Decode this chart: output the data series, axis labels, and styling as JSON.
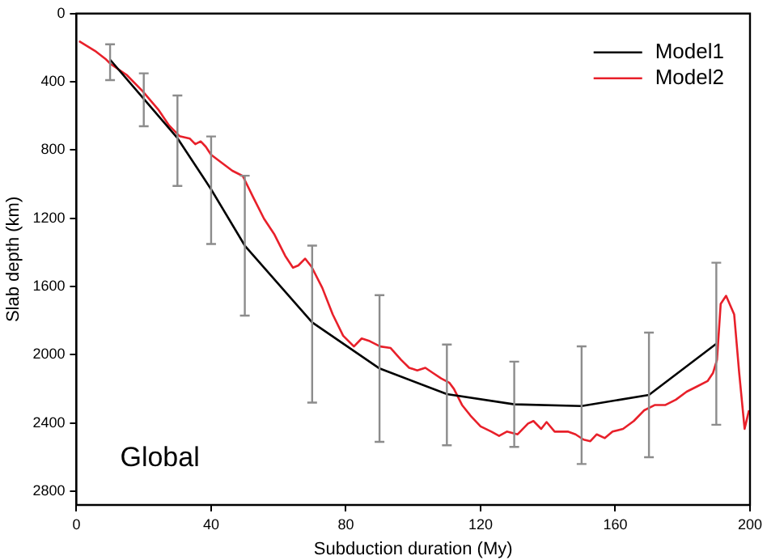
{
  "chart_data": {
    "type": "line",
    "xlabel": "Subduction duration (My)",
    "ylabel": "Slab depth (km)",
    "annotations": [
      "Global"
    ],
    "xlim": [
      0,
      200
    ],
    "xticks": [
      0,
      40,
      80,
      120,
      160,
      200
    ],
    "ylim": [
      2880,
      0
    ],
    "yticks": [
      0,
      400,
      800,
      1200,
      1600,
      2000,
      2400,
      2800
    ],
    "grid": false,
    "legend": "top right",
    "marker": "none",
    "line_style": "solid",
    "series": [
      {
        "name": "Model1",
        "color": "#000000",
        "x": [
          10,
          20,
          30,
          40,
          50,
          70,
          90,
          110,
          130,
          150,
          170,
          190
        ],
        "values": [
          270,
          500,
          730,
          1030,
          1360,
          1810,
          2080,
          2230,
          2290,
          2300,
          2235,
          1935
        ],
        "errors": [
          [
            180,
            390
          ],
          [
            350,
            660
          ],
          [
            480,
            1010
          ],
          [
            720,
            1350
          ],
          [
            950,
            1770
          ],
          [
            1360,
            2280
          ],
          [
            1650,
            2510
          ],
          [
            1940,
            2530
          ],
          [
            2040,
            2540
          ],
          [
            1950,
            2640
          ],
          [
            1870,
            2600
          ],
          [
            1460,
            2410
          ]
        ]
      },
      {
        "name": "Model2",
        "color": "#e8202a",
        "x": [
          0.8,
          5.5,
          8.6,
          10.2,
          14.9,
          19.6,
          24.3,
          27.5,
          30.6,
          33.7,
          35.3,
          36.9,
          38.4,
          40,
          43.1,
          46.3,
          49.4,
          52.5,
          55.7,
          58.8,
          62,
          64.3,
          65.9,
          67.9,
          69.8,
          73,
          76.1,
          79.2,
          82.4,
          84.7,
          87.1,
          90.2,
          93.3,
          96.4,
          98.8,
          101.2,
          103.6,
          105.9,
          108.3,
          110.7,
          112.1,
          114.5,
          117,
          120,
          123.2,
          125.5,
          127.8,
          131,
          134.1,
          135.7,
          138,
          139.6,
          142,
          145.9,
          148.2,
          150.6,
          152.6,
          154.5,
          156.9,
          159.2,
          162.3,
          165.5,
          168.6,
          171.8,
          174.9,
          178,
          181.2,
          184.3,
          187.4,
          189,
          190.2,
          191.3,
          192.9,
          195.3,
          196.8,
          198.4,
          199.7
        ],
        "values": [
          162,
          218,
          265,
          296,
          359,
          453,
          562,
          655,
          718,
          733,
          765,
          749,
          780,
          827,
          874,
          921,
          952,
          1077,
          1202,
          1295,
          1420,
          1489,
          1476,
          1436,
          1483,
          1607,
          1763,
          1888,
          1951,
          1904,
          1920,
          1951,
          1960,
          2029,
          2076,
          2091,
          2076,
          2107,
          2138,
          2163,
          2200,
          2294,
          2356,
          2419,
          2450,
          2475,
          2450,
          2466,
          2403,
          2388,
          2434,
          2394,
          2450,
          2450,
          2466,
          2497,
          2506,
          2466,
          2488,
          2450,
          2434,
          2388,
          2325,
          2294,
          2294,
          2263,
          2216,
          2185,
          2154,
          2107,
          2029,
          1701,
          1654,
          1763,
          2107,
          2434,
          2325
        ]
      }
    ]
  }
}
